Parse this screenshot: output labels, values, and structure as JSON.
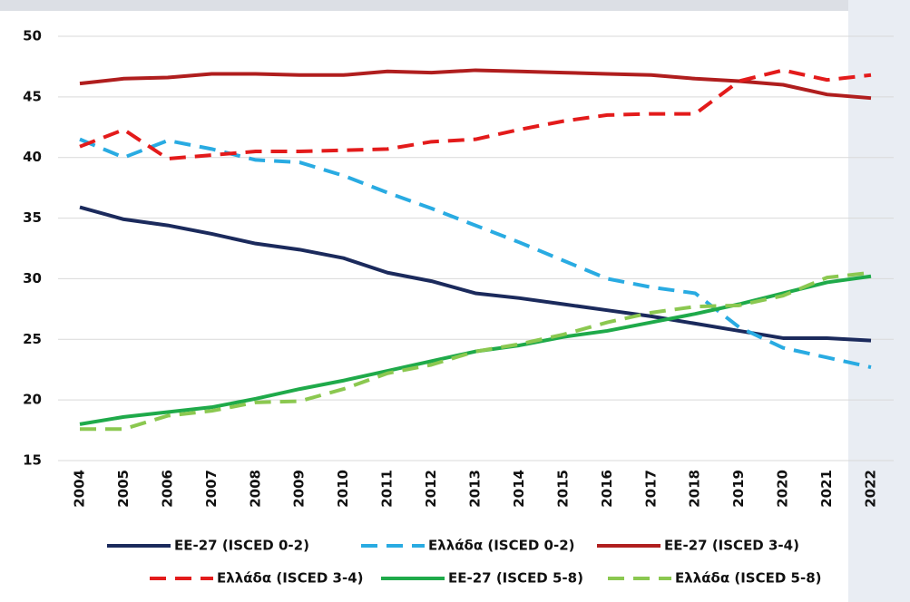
{
  "chart_data": {
    "type": "line",
    "x": [
      "2004",
      "2005",
      "2006",
      "2007",
      "2008",
      "2009",
      "2010",
      "2011",
      "2012",
      "2013",
      "2014",
      "2015",
      "2016",
      "2017",
      "2018",
      "2019",
      "2020",
      "2021",
      "2022"
    ],
    "ylim": [
      15,
      50
    ],
    "yticks": [
      15,
      20,
      25,
      30,
      35,
      40,
      45,
      50
    ],
    "grid": true,
    "legend": "bottom",
    "series": [
      {
        "name": "EE-27 (ISCED 0-2)",
        "color": "#1b2a5c",
        "dashed": false,
        "values": [
          35.9,
          34.9,
          34.4,
          33.7,
          32.9,
          32.4,
          31.7,
          30.5,
          29.8,
          28.8,
          28.4,
          27.9,
          27.4,
          26.9,
          26.3,
          25.7,
          25.1,
          25.1,
          24.9
        ]
      },
      {
        "name": "Ελλάδα (ISCED 0-2)",
        "color": "#29abe2",
        "dashed": true,
        "values": [
          41.5,
          40.0,
          41.4,
          40.7,
          39.8,
          39.6,
          38.5,
          37.1,
          35.8,
          34.4,
          33.0,
          31.5,
          30.0,
          29.3,
          28.8,
          26.0,
          24.3,
          23.5,
          22.7
        ]
      },
      {
        "name": "EE-27 (ISCED 3-4)",
        "color": "#b01e1e",
        "dashed": false,
        "values": [
          46.1,
          46.5,
          46.6,
          46.9,
          46.9,
          46.8,
          46.8,
          47.1,
          47.0,
          47.2,
          47.1,
          47.0,
          46.9,
          46.8,
          46.5,
          46.3,
          46.0,
          45.2,
          44.9
        ]
      },
      {
        "name": "Ελλάδα (ISCED 3-4)",
        "color": "#e31b1b",
        "dashed": true,
        "values": [
          40.9,
          42.3,
          39.9,
          40.2,
          40.5,
          40.5,
          40.6,
          40.7,
          41.3,
          41.5,
          42.3,
          43.0,
          43.5,
          43.6,
          43.6,
          46.3,
          47.2,
          46.4,
          46.8
        ]
      },
      {
        "name": "EE-27 (ISCED 5-8)",
        "color": "#1faa4a",
        "dashed": false,
        "values": [
          18.0,
          18.6,
          19.0,
          19.4,
          20.1,
          20.9,
          21.6,
          22.4,
          23.2,
          24.0,
          24.5,
          25.2,
          25.7,
          26.4,
          27.1,
          27.9,
          28.8,
          29.7,
          30.2
        ]
      },
      {
        "name": "Ελλάδα (ISCED 5-8)",
        "color": "#8bc850",
        "dashed": true,
        "values": [
          17.6,
          17.6,
          18.7,
          19.1,
          19.8,
          19.9,
          20.9,
          22.2,
          22.9,
          24.0,
          24.6,
          25.4,
          26.4,
          27.2,
          27.7,
          27.8,
          28.6,
          30.1,
          30.5
        ]
      }
    ]
  }
}
